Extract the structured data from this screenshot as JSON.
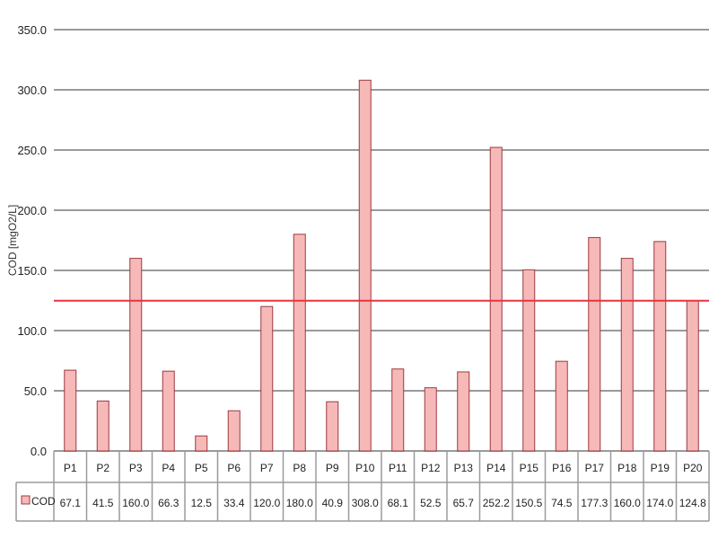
{
  "chart_data": {
    "type": "bar",
    "title": "",
    "xlabel": "",
    "ylabel": "COD [mgO2/L]",
    "ylim": [
      0,
      350
    ],
    "yticks": [
      "0.0",
      "50.0",
      "100.0",
      "150.0",
      "200.0",
      "250.0",
      "300.0",
      "350.0"
    ],
    "grid": true,
    "legend_position": "left of data table",
    "categories": [
      "P1",
      "P2",
      "P3",
      "P4",
      "P5",
      "P6",
      "P7",
      "P8",
      "P9",
      "P10",
      "P11",
      "P12",
      "P13",
      "P14",
      "P15",
      "P16",
      "P17",
      "P18",
      "P19",
      "P20"
    ],
    "series": [
      {
        "name": "COD",
        "values": [
          67.1,
          41.5,
          160.0,
          66.3,
          12.5,
          33.4,
          120.0,
          180.0,
          40.9,
          308.0,
          68.1,
          52.5,
          65.7,
          252.2,
          150.5,
          74.5,
          177.3,
          160.0,
          174.0,
          124.8
        ],
        "labels": [
          "67.1",
          "41.5",
          "160.0",
          "66.3",
          "12.5",
          "33.4",
          "120.0",
          "180.0",
          "40.9",
          "308.0",
          "68.1",
          "52.5",
          "65.7",
          "252.2",
          "150.5",
          "74.5",
          "177.3",
          "160.0",
          "174.0",
          "124.8"
        ]
      }
    ],
    "reference_line": {
      "value": 124.8
    },
    "colors": {
      "bar_fill": "#f7b8b8",
      "bar_stroke": "#9b3b40",
      "reference_line": "#e8343c",
      "grid": "#9a9a9a"
    }
  }
}
